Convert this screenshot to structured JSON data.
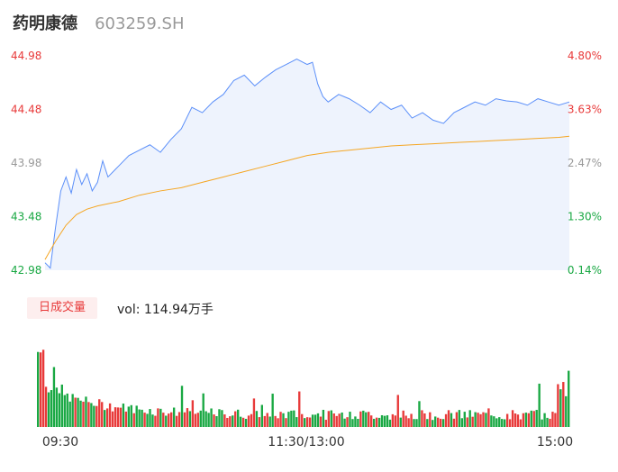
{
  "header": {
    "name": "药明康德",
    "code": "603259.SH"
  },
  "volume_panel": {
    "tag": "日成交量",
    "vol_label": "vol: 114.94万手"
  },
  "colors": {
    "price_line": "#5b8ff9",
    "avg_line": "#f5a623",
    "area_fill": "#eef3fd",
    "up": "#e83a3a",
    "down": "#19a843",
    "neutral": "#999999"
  },
  "chart_data": [
    {
      "type": "line",
      "title": "",
      "y_ticks": [
        "44.98",
        "44.48",
        "43.98",
        "43.48",
        "42.98"
      ],
      "y_pct_ticks": [
        "4.80%",
        "3.63%",
        "2.47%",
        "1.30%",
        "0.14%"
      ],
      "ylim": [
        42.98,
        44.98
      ],
      "x_ticks": [
        "09:30",
        "11:30/13:00",
        "15:00"
      ],
      "series": [
        {
          "name": "",
          "role": "price",
          "x": [
            0,
            0.01,
            0.02,
            0.03,
            0.04,
            0.05,
            0.06,
            0.07,
            0.08,
            0.09,
            0.1,
            0.11,
            0.12,
            0.14,
            0.16,
            0.18,
            0.2,
            0.22,
            0.24,
            0.26,
            0.28,
            0.3,
            0.32,
            0.34,
            0.36,
            0.38,
            0.4,
            0.42,
            0.44,
            0.46,
            0.48,
            0.5,
            0.51,
            0.52,
            0.53,
            0.54,
            0.56,
            0.58,
            0.6,
            0.62,
            0.64,
            0.66,
            0.68,
            0.7,
            0.72,
            0.74,
            0.76,
            0.78,
            0.8,
            0.82,
            0.84,
            0.86,
            0.88,
            0.9,
            0.92,
            0.94,
            0.96,
            0.98,
            1.0
          ],
          "values": [
            43.05,
            43.0,
            43.38,
            43.72,
            43.85,
            43.7,
            43.92,
            43.78,
            43.88,
            43.72,
            43.8,
            44.0,
            43.85,
            43.95,
            44.05,
            44.1,
            44.15,
            44.08,
            44.2,
            44.3,
            44.5,
            44.45,
            44.55,
            44.62,
            44.75,
            44.8,
            44.7,
            44.78,
            44.85,
            44.9,
            44.95,
            44.9,
            44.92,
            44.72,
            44.6,
            44.55,
            44.62,
            44.58,
            44.52,
            44.45,
            44.55,
            44.48,
            44.52,
            44.4,
            44.45,
            44.38,
            44.35,
            44.45,
            44.5,
            44.55,
            44.52,
            44.58,
            44.56,
            44.55,
            44.52,
            44.58,
            44.55,
            44.52,
            44.55
          ]
        },
        {
          "name": "",
          "role": "average",
          "x": [
            0,
            0.02,
            0.04,
            0.06,
            0.08,
            0.1,
            0.14,
            0.18,
            0.22,
            0.26,
            0.3,
            0.34,
            0.38,
            0.42,
            0.46,
            0.5,
            0.54,
            0.58,
            0.62,
            0.66,
            0.7,
            0.74,
            0.78,
            0.82,
            0.86,
            0.9,
            0.94,
            0.98,
            1.0
          ],
          "values": [
            43.08,
            43.25,
            43.4,
            43.5,
            43.55,
            43.58,
            43.62,
            43.68,
            43.72,
            43.75,
            43.8,
            43.85,
            43.9,
            43.95,
            44.0,
            44.05,
            44.08,
            44.1,
            44.12,
            44.14,
            44.15,
            44.16,
            44.17,
            44.18,
            44.19,
            44.2,
            44.21,
            44.22,
            44.23
          ]
        }
      ]
    },
    {
      "type": "bar",
      "title": "",
      "x_ticks": [
        "09:30",
        "11:30/13:00",
        "15:00"
      ],
      "bars": 200
    }
  ]
}
